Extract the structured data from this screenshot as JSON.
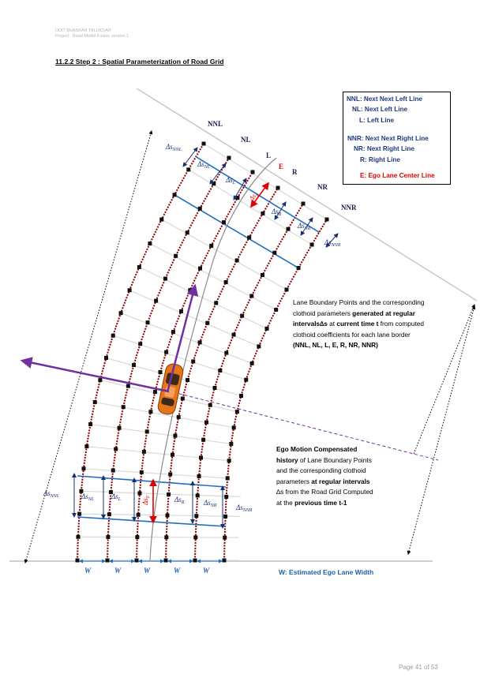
{
  "header": {
    "author": "UDIT BHASKAR TALUKDAR",
    "project": "Project : Road Model  Fusion version 1"
  },
  "section": {
    "number": "11.2.2",
    "title": " Step 2 : Spatial Parameterization of Road Grid"
  },
  "legend": [
    "NNL: Next Next Left Line",
    "NL: Next Left Line",
    "L: Left Line",
    "NNR: Next Next Right Line",
    "NR: Next Right Line",
    "R: Right Line",
    "E: Ego Lane Center Line"
  ],
  "lane_labels": {
    "NNL": "NNL",
    "NL": "NL",
    "L": "L",
    "E": "E",
    "R": "R",
    "NR": "NR",
    "NNR": "NNR"
  },
  "delta_s_labels": {
    "symbol": "Δs",
    "NNL": "NNL",
    "NL": "NL",
    "L": "L",
    "E": "E",
    "R": "R",
    "NR": "NR",
    "NNR": "NNR"
  },
  "width_symbol": "W",
  "paragraph_current": {
    "line1": "Lane Boundary Points and the corresponding",
    "line2a": "clothoid parameters ",
    "line2b": "generated at regular",
    "line3a": "intervals∆s",
    "line3b": " at  ",
    "line3c": "current time t",
    "line3d": " from computed",
    "line4": "clothoid coefficients for each lane border",
    "line5": "(NNL, NL, L, E, R, NR, NNR)"
  },
  "paragraph_previous": {
    "line1": "Ego Motion Compensated",
    "line2a": "history",
    "line2b": " of Lane Boundary Points",
    "line3": "and the corresponding clothoid",
    "line4a": "parameters  ",
    "line4b": "at regular intervals",
    "line5": "∆s from the Road Grid Computed",
    "line6a": "at the ",
    "line6b": "previous time t-1"
  },
  "width_caption": "W: Estimated Ego Lane Width",
  "page_number": "Page 41 of 53",
  "colors": {
    "lane_line": "#8b0000",
    "grid_line": "#d9d9d9",
    "blue_grid": "#1f6fc0",
    "ego_arrow": "#7030a0",
    "ego_delta": "#e00000",
    "legend_text": "#1f3a7a",
    "car": "#e8741a"
  }
}
